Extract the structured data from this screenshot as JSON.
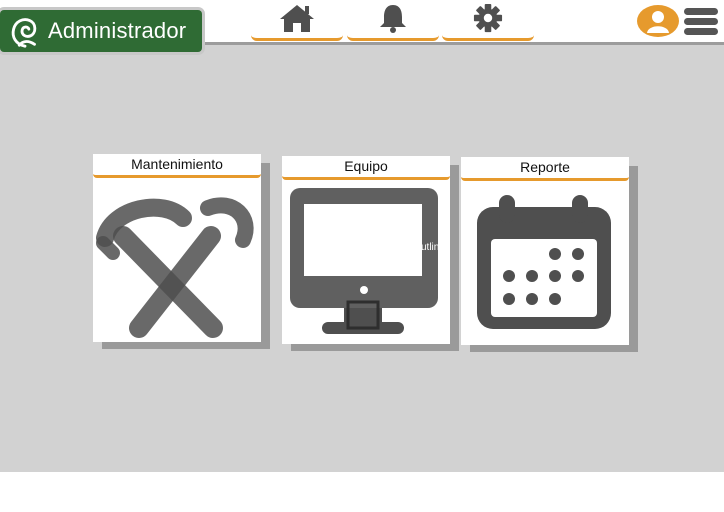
{
  "header": {
    "brand_title": "Administrador",
    "logo_icon": "swirl-logo-icon",
    "nav": [
      {
        "icon": "home-icon"
      },
      {
        "icon": "bell-icon"
      },
      {
        "icon": "gear-icon"
      }
    ],
    "avatar_icon": "user-avatar-icon",
    "menu_icon": "hamburger-menu-icon"
  },
  "cards": [
    {
      "label": "Mantenimiento",
      "icon": "tools-icon"
    },
    {
      "label": "Equipo",
      "icon": "monitor-icon"
    },
    {
      "label": "Reporte",
      "icon": "calendar-icon"
    }
  ],
  "overlay_text": "utline",
  "colors": {
    "brand_green": "#2f6b34",
    "accent_orange": "#e69a2d",
    "canvas_gray": "#d2d2d2",
    "icon_gray": "#4f4f4f"
  }
}
